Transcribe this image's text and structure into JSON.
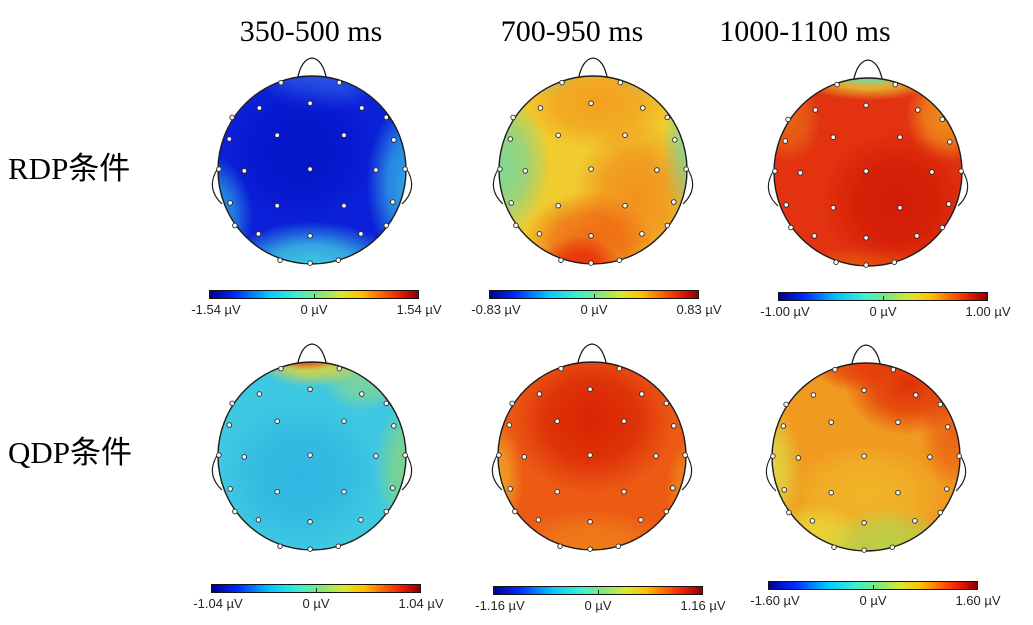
{
  "chart_data": {
    "type": "heatmap",
    "subtype": "eeg-scalp-topography-grid",
    "colormap": "jet",
    "unit": "µV",
    "columns": [
      "350-500 ms",
      "700-950 ms",
      "1000-1100 ms"
    ],
    "rows": [
      "RDP条件",
      "QDP条件"
    ],
    "electrodes": [
      [
        -0.33,
        -0.93
      ],
      [
        0.29,
        -0.93
      ],
      [
        -0.85,
        -0.56
      ],
      [
        -0.56,
        -0.66
      ],
      [
        -0.02,
        -0.71
      ],
      [
        0.53,
        -0.66
      ],
      [
        0.79,
        -0.56
      ],
      [
        -0.88,
        -0.33
      ],
      [
        -0.37,
        -0.37
      ],
      [
        0.34,
        -0.37
      ],
      [
        0.87,
        -0.32
      ],
      [
        -0.99,
        -0.01
      ],
      [
        -0.72,
        0.01
      ],
      [
        -0.02,
        -0.01
      ],
      [
        0.68,
        0.0
      ],
      [
        0.99,
        -0.01
      ],
      [
        -0.87,
        0.35
      ],
      [
        -0.37,
        0.38
      ],
      [
        0.34,
        0.38
      ],
      [
        0.86,
        0.34
      ],
      [
        -0.82,
        0.59
      ],
      [
        -0.57,
        0.68
      ],
      [
        -0.02,
        0.7
      ],
      [
        0.52,
        0.68
      ],
      [
        0.79,
        0.59
      ],
      [
        -0.34,
        0.96
      ],
      [
        -0.02,
        0.99
      ],
      [
        0.28,
        0.96
      ]
    ],
    "maps": [
      {
        "condition": "RDP条件",
        "time_window": "350-500 ms",
        "vmin": -1.54,
        "vmax": 1.54,
        "labels": {
          "min": "-1.54 µV",
          "zero": "0 µV",
          "max": "1.54 µV"
        },
        "pattern": "strong negativity (deep blue) over whole scalp, strongest fronto-central; cyan toward occipital and temporal edges",
        "render": {
          "base": "#0b20d8",
          "blobs": [
            {
              "x": 0.1,
              "y": -1.05,
              "rx": 0.7,
              "ry": 0.45,
              "c": "#2e5ce8",
              "a": 0.85
            },
            {
              "x": 1.08,
              "y": 0.15,
              "rx": 0.5,
              "ry": 0.9,
              "c": "#38c4e8",
              "a": 0.85
            },
            {
              "x": -1.08,
              "y": 0.5,
              "rx": 0.45,
              "ry": 0.65,
              "c": "#38c4e8",
              "a": 0.75
            },
            {
              "x": 0.0,
              "y": 1.1,
              "rx": 1.0,
              "ry": 0.55,
              "c": "#47e2e6",
              "a": 0.95
            },
            {
              "x": -0.12,
              "y": -0.2,
              "rx": 0.8,
              "ry": 0.75,
              "c": "#0514c8",
              "a": 0.95
            }
          ]
        }
      },
      {
        "condition": "RDP条件",
        "time_window": "700-950 ms",
        "vmin": -0.83,
        "vmax": 0.83,
        "labels": {
          "min": "-0.83 µV",
          "zero": "0 µV",
          "max": "0.83 µV"
        },
        "pattern": "yellow-orange positivity centro-parietal with red maximum at occipital midline; green-cyan over left temporal and right edge",
        "render": {
          "base": "#f0cc2e",
          "blobs": [
            {
              "x": -0.45,
              "y": -1.05,
              "rx": 0.38,
              "ry": 0.28,
              "c": "#7edca4",
              "a": 0.75
            },
            {
              "x": 0.55,
              "y": -1.05,
              "rx": 0.45,
              "ry": 0.3,
              "c": "#7edca4",
              "a": 0.8
            },
            {
              "x": -1.05,
              "y": -0.05,
              "rx": 0.6,
              "ry": 0.8,
              "c": "#6cd8a4",
              "a": 0.9
            },
            {
              "x": 1.1,
              "y": -0.15,
              "rx": 0.38,
              "ry": 0.85,
              "c": "#6cd8ac",
              "a": 0.85
            },
            {
              "x": 0.05,
              "y": -0.72,
              "rx": 0.8,
              "ry": 0.5,
              "c": "#f49a1c",
              "a": 0.9
            },
            {
              "x": 0.45,
              "y": 0.3,
              "rx": 0.65,
              "ry": 0.85,
              "c": "#f2821a",
              "a": 0.8
            },
            {
              "x": -0.05,
              "y": 0.78,
              "rx": 0.7,
              "ry": 0.55,
              "c": "#ef5810",
              "a": 0.85
            },
            {
              "x": -0.15,
              "y": 1.08,
              "rx": 0.45,
              "ry": 0.38,
              "c": "#e52408",
              "a": 0.95
            }
          ]
        }
      },
      {
        "condition": "RDP条件",
        "time_window": "1000-1100 ms",
        "vmin": -1.0,
        "vmax": 1.0,
        "labels": {
          "min": "-1.00 µV",
          "zero": "0 µV",
          "max": "1.00 µV"
        },
        "pattern": "broad red positivity over whole scalp, darkest centro-right; narrow cyan-to-yellow strip at frontal pole",
        "render": {
          "base": "#e23210",
          "blobs": [
            {
              "x": 0.85,
              "y": -0.6,
              "rx": 0.45,
              "ry": 0.5,
              "c": "#f2a01e",
              "a": 0.85
            },
            {
              "x": -0.85,
              "y": -0.55,
              "rx": 0.35,
              "ry": 0.45,
              "c": "#ee8418",
              "a": 0.6
            },
            {
              "x": 0.0,
              "y": 1.08,
              "rx": 0.85,
              "ry": 0.3,
              "c": "#ee6a14",
              "a": 0.65
            },
            {
              "x": 0.02,
              "y": -1.02,
              "rx": 0.8,
              "ry": 0.26,
              "c": "#e9e23a",
              "a": 0.9
            },
            {
              "x": 0.0,
              "y": -1.06,
              "rx": 0.52,
              "ry": 0.16,
              "c": "#52d8b8",
              "a": 0.95
            },
            {
              "x": 0.3,
              "y": 0.32,
              "rx": 0.8,
              "ry": 0.75,
              "c": "#ce1502",
              "a": 0.8
            }
          ]
        }
      },
      {
        "condition": "QDP条件",
        "time_window": "350-500 ms",
        "vmin": -1.04,
        "vmax": 1.04,
        "labels": {
          "min": "-1.04 µV",
          "zero": "0 µV",
          "max": "1.04 µV"
        },
        "pattern": "cyan mild negativity over scalp; red-yellow hotspot at frontal pole near nose; green patch at right temporal edge",
        "render": {
          "base": "#3ec8e2",
          "blobs": [
            {
              "x": -0.12,
              "y": 0.2,
              "rx": 0.85,
              "ry": 0.8,
              "c": "#2eb2e2",
              "a": 0.8
            },
            {
              "x": 0.55,
              "y": -0.82,
              "rx": 0.45,
              "ry": 0.35,
              "c": "#aadc6a",
              "a": 0.6
            },
            {
              "x": 0.0,
              "y": -1.03,
              "rx": 0.6,
              "ry": 0.3,
              "c": "#f0d628",
              "a": 0.95
            },
            {
              "x": -0.05,
              "y": -1.08,
              "rx": 0.4,
              "ry": 0.17,
              "c": "#e82c0c",
              "a": 0.95
            },
            {
              "x": 1.08,
              "y": 0.12,
              "rx": 0.42,
              "ry": 0.75,
              "c": "#8cd67a",
              "a": 0.9
            }
          ]
        }
      },
      {
        "condition": "QDP条件",
        "time_window": "700-950 ms",
        "vmin": -1.16,
        "vmax": 1.16,
        "labels": {
          "min": "-1.16 µV",
          "zero": "0 µV",
          "max": "1.16 µV"
        },
        "pattern": "strong red positivity fronto-central fading to orange parieto-occipital; yellow sliver at left temporal edge",
        "render": {
          "base": "#ec5a14",
          "blobs": [
            {
              "x": -1.08,
              "y": 0.25,
              "rx": 0.35,
              "ry": 0.65,
              "c": "#f2b226",
              "a": 0.85
            },
            {
              "x": 1.08,
              "y": 0.35,
              "rx": 0.3,
              "ry": 0.55,
              "c": "#f29a1e",
              "a": 0.7
            },
            {
              "x": 0.0,
              "y": 1.05,
              "rx": 0.9,
              "ry": 0.5,
              "c": "#f2871c",
              "a": 0.8
            },
            {
              "x": 0.0,
              "y": -0.38,
              "rx": 0.88,
              "ry": 0.78,
              "c": "#d71e02",
              "a": 0.9
            }
          ]
        }
      },
      {
        "condition": "QDP条件",
        "time_window": "1000-1100 ms",
        "vmin": -1.6,
        "vmax": 1.6,
        "labels": {
          "min": "-1.60 µV",
          "zero": "0 µV",
          "max": "1.60 µV"
        },
        "pattern": "red positivity frontal (max right-frontal) grading through orange to yellow-green at parieto-occipital sites",
        "render": {
          "base": "#f09a20",
          "blobs": [
            {
              "x": 0.0,
              "y": 0.4,
              "rx": 0.85,
              "ry": 0.55,
              "c": "#f0c42c",
              "a": 0.65
            },
            {
              "x": -1.08,
              "y": 0.15,
              "rx": 0.4,
              "ry": 0.75,
              "c": "#dce24a",
              "a": 0.85
            },
            {
              "x": -0.55,
              "y": 0.9,
              "rx": 0.55,
              "ry": 0.42,
              "c": "#e6e43c",
              "a": 0.85
            },
            {
              "x": 0.25,
              "y": 1.0,
              "rx": 0.72,
              "ry": 0.48,
              "c": "#b2da52",
              "a": 0.9
            },
            {
              "x": 0.95,
              "y": -0.25,
              "rx": 0.38,
              "ry": 0.6,
              "c": "#ea4c0e",
              "a": 0.7
            },
            {
              "x": 0.45,
              "y": -0.78,
              "rx": 0.68,
              "ry": 0.55,
              "c": "#e02604",
              "a": 0.9
            },
            {
              "x": -0.1,
              "y": -1.02,
              "rx": 0.5,
              "ry": 0.33,
              "c": "#e43208",
              "a": 0.85
            }
          ]
        }
      }
    ]
  }
}
